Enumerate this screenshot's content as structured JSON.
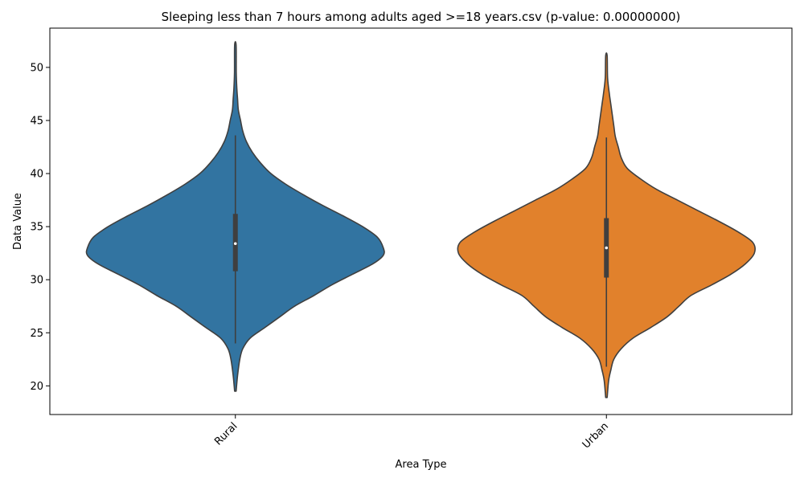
{
  "chart_data": {
    "type": "violin",
    "title": "Sleeping less than 7 hours among adults aged >=18 years.csv (p-value: 0.00000000)",
    "xlabel": "Area Type",
    "ylabel": "Data Value",
    "ylim": [
      17.3,
      53.7
    ],
    "yticks": [
      20,
      25,
      30,
      35,
      40,
      45,
      50
    ],
    "categories": [
      "Rural",
      "Urban"
    ],
    "series": [
      {
        "category": "Rural",
        "color": "#3274a1",
        "min": 19.5,
        "max": 52.1,
        "q1": 30.8,
        "median": 33.4,
        "q3": 36.2,
        "whisker_low": 24.0,
        "whisker_high": 43.6,
        "density_profile": [
          [
            19.5,
            0.005
          ],
          [
            21,
            0.015
          ],
          [
            22.5,
            0.03
          ],
          [
            23.5,
            0.05
          ],
          [
            24.5,
            0.1
          ],
          [
            25.5,
            0.2
          ],
          [
            26.5,
            0.3
          ],
          [
            27.5,
            0.4
          ],
          [
            28.5,
            0.53
          ],
          [
            29.5,
            0.65
          ],
          [
            30.5,
            0.79
          ],
          [
            31.5,
            0.93
          ],
          [
            32.3,
            1.0
          ],
          [
            33.0,
            1.0
          ],
          [
            34.0,
            0.96
          ],
          [
            35.0,
            0.86
          ],
          [
            36.0,
            0.73
          ],
          [
            37.0,
            0.59
          ],
          [
            38.0,
            0.46
          ],
          [
            39.0,
            0.34
          ],
          [
            40.0,
            0.24
          ],
          [
            41.0,
            0.17
          ],
          [
            42.0,
            0.115
          ],
          [
            43.0,
            0.075
          ],
          [
            44.0,
            0.05
          ],
          [
            45.0,
            0.035
          ],
          [
            46.0,
            0.02
          ],
          [
            47.0,
            0.015
          ],
          [
            48.0,
            0.01
          ],
          [
            49.5,
            0.006
          ],
          [
            52.1,
            0.005
          ]
        ]
      },
      {
        "category": "Urban",
        "color": "#e1812c",
        "min": 18.9,
        "max": 51.1,
        "q1": 30.2,
        "median": 33.0,
        "q3": 35.8,
        "whisker_low": 21.8,
        "whisker_high": 43.4,
        "density_profile": [
          [
            18.9,
            0.005
          ],
          [
            20.5,
            0.015
          ],
          [
            21.5,
            0.03
          ],
          [
            22.5,
            0.05
          ],
          [
            23.5,
            0.1
          ],
          [
            24.5,
            0.18
          ],
          [
            25.5,
            0.3
          ],
          [
            26.5,
            0.41
          ],
          [
            27.5,
            0.49
          ],
          [
            28.5,
            0.57
          ],
          [
            29.5,
            0.71
          ],
          [
            30.5,
            0.84
          ],
          [
            31.5,
            0.94
          ],
          [
            32.5,
            1.0
          ],
          [
            33.5,
            0.99
          ],
          [
            34.5,
            0.89
          ],
          [
            35.5,
            0.76
          ],
          [
            36.5,
            0.62
          ],
          [
            37.5,
            0.48
          ],
          [
            38.5,
            0.34
          ],
          [
            39.5,
            0.23
          ],
          [
            40.5,
            0.14
          ],
          [
            41.5,
            0.1
          ],
          [
            42.5,
            0.08
          ],
          [
            43.5,
            0.06
          ],
          [
            44.5,
            0.05
          ],
          [
            45.5,
            0.04
          ],
          [
            46.5,
            0.03
          ],
          [
            47.5,
            0.02
          ],
          [
            49.0,
            0.008
          ],
          [
            51.1,
            0.005
          ]
        ]
      }
    ],
    "grid": false,
    "legend": "none"
  }
}
